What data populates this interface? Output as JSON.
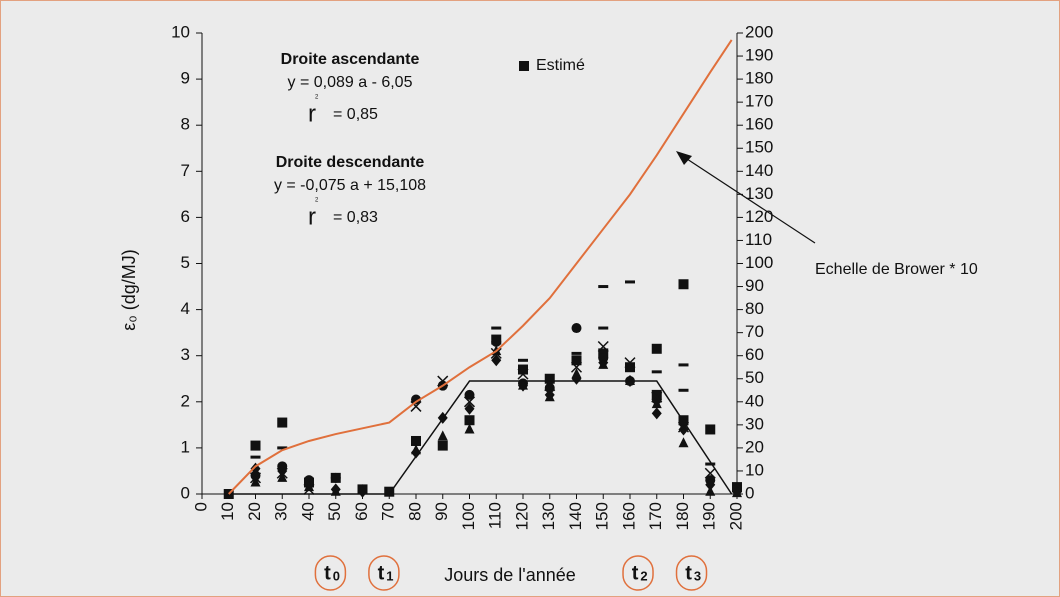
{
  "chart_data": {
    "type": "scatter",
    "xlabel": "Jours de l'année",
    "ylabel": "ε₀ (dg/MJ)",
    "xlim": [
      0,
      200
    ],
    "xticks": [
      0,
      10,
      20,
      30,
      40,
      50,
      60,
      70,
      80,
      90,
      100,
      110,
      120,
      130,
      140,
      150,
      160,
      170,
      180,
      190,
      200
    ],
    "ylim": [
      0,
      10
    ],
    "yticks": [
      0,
      1,
      2,
      3,
      4,
      5,
      6,
      7,
      8,
      9,
      10
    ],
    "y2lim": [
      0,
      200
    ],
    "y2ticks": [
      0,
      10,
      20,
      30,
      40,
      50,
      60,
      70,
      80,
      90,
      100,
      110,
      120,
      130,
      140,
      150,
      160,
      170,
      180,
      190,
      200
    ],
    "legend": "top",
    "annotations": [
      {
        "lines": [
          "Droite ascendante",
          "y = 0,089 a - 6,05"
        ],
        "r": "r",
        "sup": "2",
        "rvalue": "= 0,85"
      },
      {
        "lines": [
          "Droite descendante",
          "y = -0,075 a + 15,108"
        ],
        "r": "r",
        "sup": "2",
        "rvalue": "= 0,83"
      }
    ],
    "arrow_label": "Echelle de Brower * 10",
    "time_markers": [
      {
        "t": "t",
        "sub": "0",
        "x": 48
      },
      {
        "t": "t",
        "sub": "1",
        "x": 68
      },
      {
        "t": "t",
        "sub": "2",
        "x": 163
      },
      {
        "t": "t",
        "sub": "3",
        "x": 183
      }
    ],
    "series": [
      {
        "name": "Estimé",
        "marker": "square",
        "color": "#111111",
        "x": [
          10,
          20,
          30,
          40,
          50,
          60,
          70,
          80,
          90,
          100,
          110,
          120,
          130,
          140,
          150,
          160,
          170,
          170,
          180,
          180,
          190,
          200
        ],
        "values": [
          0,
          1.05,
          1.55,
          0.25,
          0.35,
          0.1,
          0.05,
          1.15,
          1.05,
          1.6,
          3.35,
          2.7,
          2.5,
          2.9,
          3.05,
          2.75,
          3.15,
          2.15,
          4.55,
          1.6,
          1.4,
          0.15
        ]
      },
      {
        "marker": "circle",
        "color": "#111111",
        "x": [
          20,
          30,
          40,
          50,
          60,
          80,
          90,
          100,
          110,
          120,
          130,
          140,
          150,
          160,
          170,
          180,
          190,
          200
        ],
        "values": [
          0.4,
          0.6,
          0.3,
          0.35,
          0.1,
          2.05,
          2.35,
          2.15,
          3.3,
          2.4,
          2.3,
          3.6,
          2.95,
          2.45,
          2.05,
          1.55,
          0.3,
          0.1
        ]
      },
      {
        "marker": "diamond",
        "color": "#111111",
        "x": [
          20,
          30,
          40,
          50,
          60,
          80,
          90,
          100,
          110,
          120,
          130,
          140,
          150,
          160,
          170,
          180,
          190,
          200
        ],
        "values": [
          0.55,
          0.5,
          0.2,
          0.1,
          0.05,
          0.9,
          1.65,
          1.85,
          2.9,
          2.35,
          2.15,
          2.5,
          2.85,
          2.45,
          1.75,
          1.4,
          0.2,
          0.05
        ]
      },
      {
        "marker": "triangle",
        "color": "#111111",
        "x": [
          20,
          30,
          40,
          50,
          80,
          90,
          100,
          110,
          120,
          130,
          140,
          150,
          160,
          170,
          180,
          190,
          200
        ],
        "values": [
          0.25,
          0.35,
          0.15,
          0.05,
          0.95,
          1.25,
          1.4,
          3.1,
          2.35,
          2.1,
          2.6,
          2.8,
          2.45,
          1.95,
          1.1,
          0.05,
          0.02
        ]
      },
      {
        "marker": "cross",
        "color": "#111111",
        "x": [
          20,
          30,
          40,
          80,
          90,
          100,
          110,
          120,
          130,
          140,
          150,
          160,
          170,
          180,
          190
        ],
        "values": [
          0.35,
          0.45,
          0.1,
          1.9,
          2.45,
          2.0,
          3.05,
          2.6,
          2.35,
          2.75,
          3.2,
          2.85,
          2.1,
          1.45,
          0.45
        ]
      },
      {
        "marker": "dash",
        "color": "#111111",
        "x": [
          20,
          30,
          110,
          120,
          140,
          150,
          150,
          160,
          170,
          180,
          180,
          190
        ],
        "values": [
          0.8,
          1.0,
          3.6,
          2.9,
          3.05,
          4.5,
          3.6,
          4.6,
          2.65,
          2.8,
          2.25,
          0.65
        ]
      },
      {
        "marker": "line",
        "color": "#111111",
        "x": [
          10,
          70,
          100,
          170,
          198
        ],
        "values": [
          0,
          0,
          2.45,
          2.45,
          0
        ]
      },
      {
        "marker": "line",
        "color": "#e0703c",
        "axis": "y2",
        "x": [
          10,
          20,
          30,
          40,
          50,
          60,
          70,
          80,
          90,
          100,
          110,
          120,
          130,
          140,
          150,
          160,
          170,
          180,
          190,
          198
        ],
        "values": [
          0,
          12,
          19,
          23,
          26,
          28.5,
          31,
          40,
          47,
          55,
          62,
          73,
          85,
          100,
          115,
          130,
          147,
          165,
          183,
          197
        ]
      }
    ]
  }
}
